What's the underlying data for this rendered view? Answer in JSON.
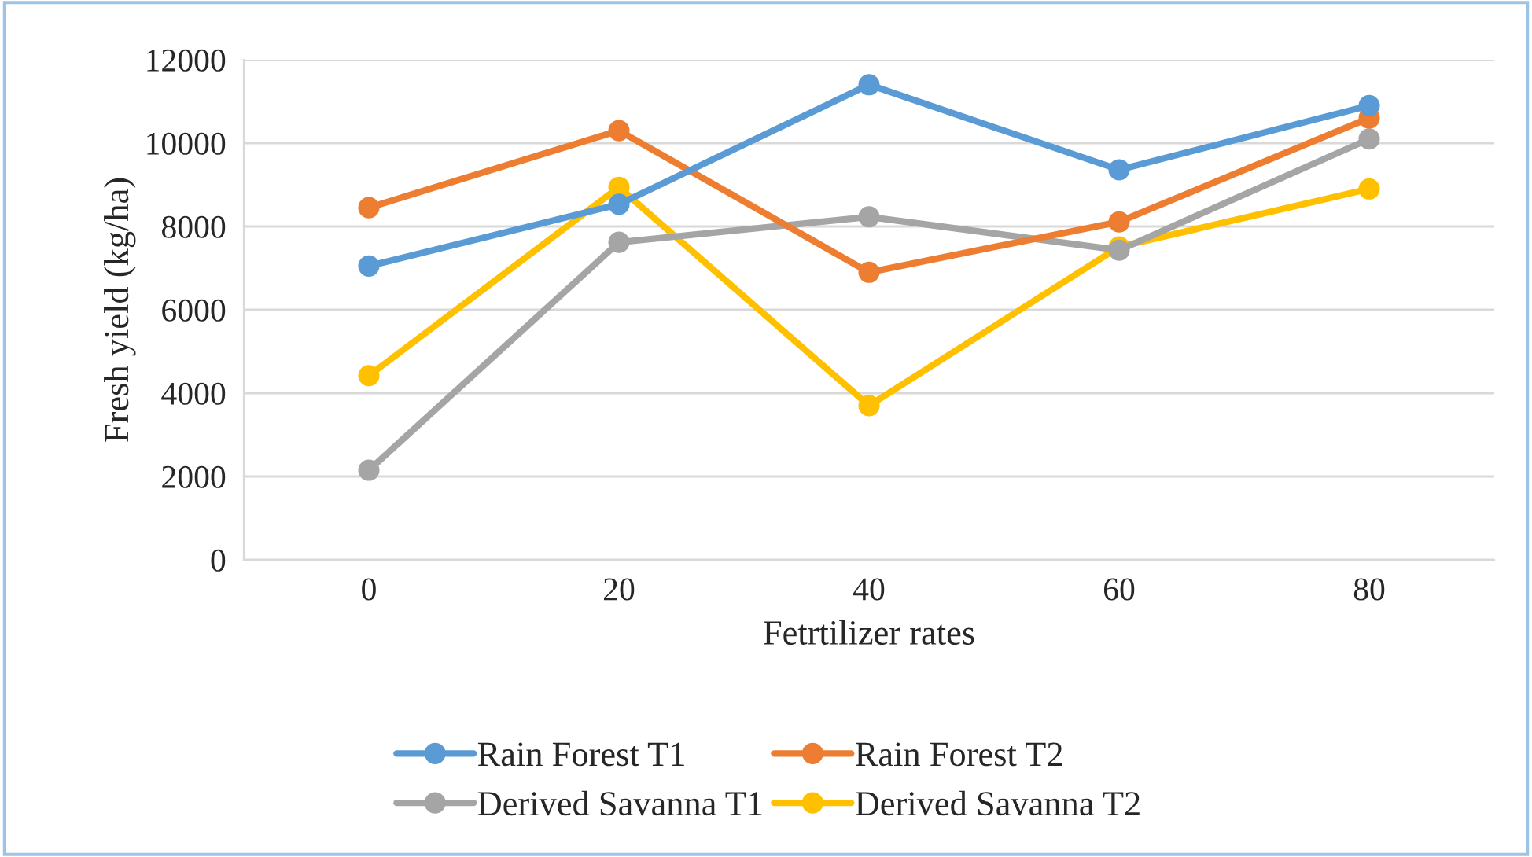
{
  "chart_data": {
    "type": "line",
    "xlabel": "Fetrtilizer rates",
    "ylabel": "Fresh yield (kg/ha)",
    "categories": [
      "0",
      "20",
      "40",
      "60",
      "80"
    ],
    "ylim": [
      0,
      12000
    ],
    "yticks": [
      0,
      2000,
      4000,
      6000,
      8000,
      10000,
      12000
    ],
    "grid": "y",
    "legend": "bottom",
    "marker": "circle",
    "line_style": "solid",
    "series": [
      {
        "name": "Rain Forest T1",
        "color": "#5b9bd5",
        "values": [
          7050,
          8530,
          11400,
          9360,
          10900
        ]
      },
      {
        "name": "Rain Forest T2",
        "color": "#ed7d31",
        "values": [
          8450,
          10300,
          6900,
          8110,
          10600
        ]
      },
      {
        "name": "Derived Savanna T1",
        "color": "#a5a5a5",
        "values": [
          2150,
          7620,
          8230,
          7430,
          10100
        ]
      },
      {
        "name": "Derived Savanna T2",
        "color": "#ffc000",
        "values": [
          4420,
          8940,
          3700,
          7510,
          8900
        ]
      }
    ]
  }
}
